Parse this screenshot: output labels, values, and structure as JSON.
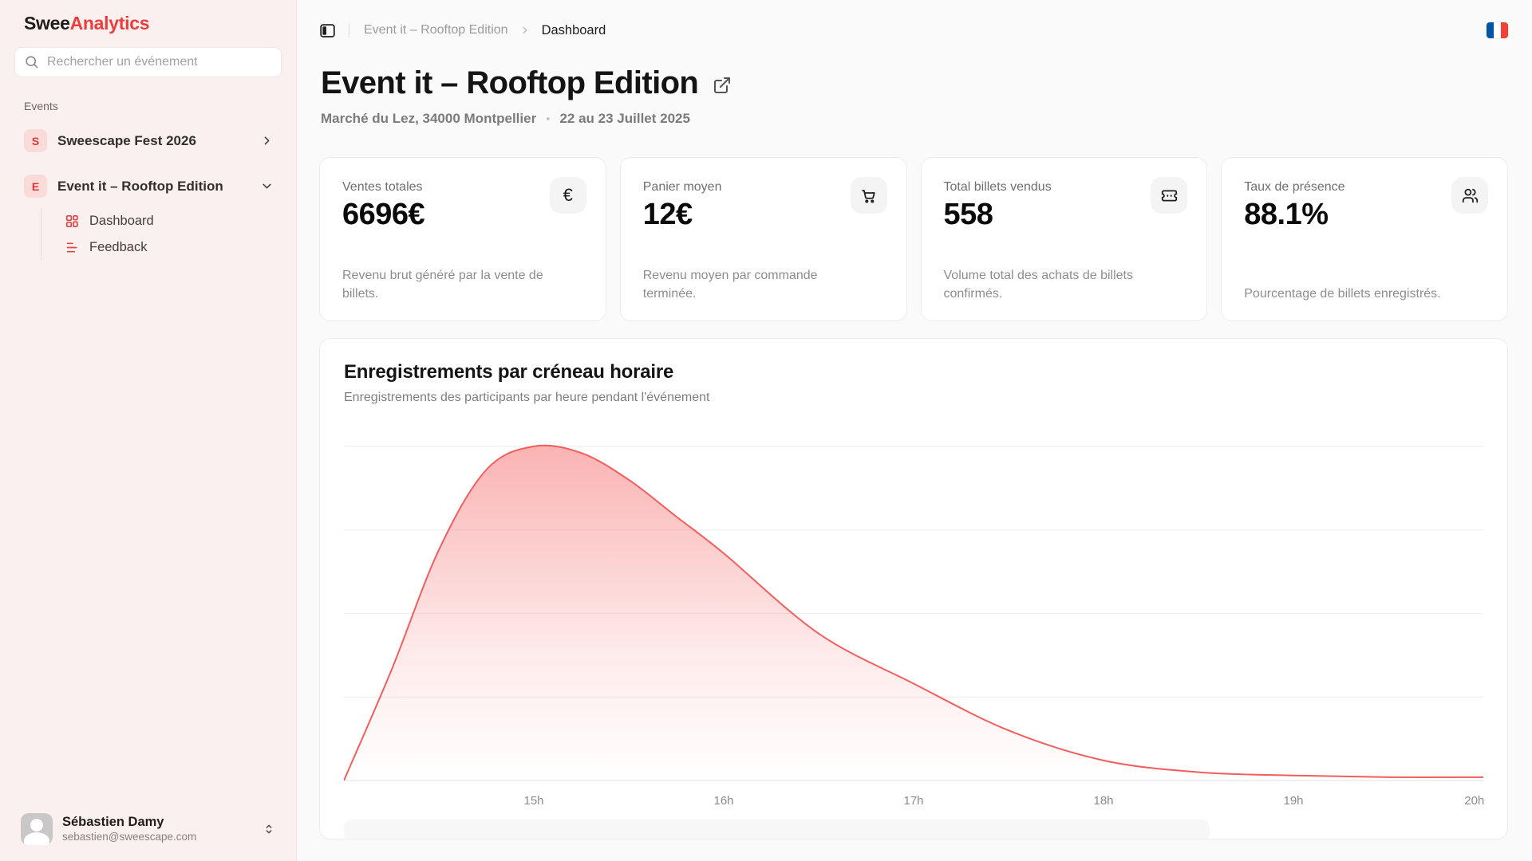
{
  "app": {
    "brand_prefix": "Swee",
    "brand_suffix": "Analytics"
  },
  "sidebar": {
    "search_placeholder": "Rechercher un événement",
    "section_label": "Events",
    "events": [
      {
        "initial": "S",
        "label": "Sweescape Fest 2026",
        "expanded": false
      },
      {
        "initial": "E",
        "label": "Event it – Rooftop Edition",
        "expanded": true
      }
    ],
    "subitems": [
      {
        "label": "Dashboard",
        "icon": "dashboard-grid-icon"
      },
      {
        "label": "Feedback",
        "icon": "feedback-lines-icon"
      }
    ],
    "user": {
      "name": "Sébastien Damy",
      "email": "sebastien@sweescape.com"
    }
  },
  "header": {
    "breadcrumb_parent": "Event it – Rooftop Edition",
    "breadcrumb_current": "Dashboard",
    "language_flag": "french-flag"
  },
  "page": {
    "title": "Event it – Rooftop Edition",
    "location": "Marché du Lez, 34000 Montpellier",
    "separator": "•",
    "dates": "22 au 23 Juillet 2025"
  },
  "stats": [
    {
      "label": "Ventes totales",
      "value": "6696€",
      "icon": "euro-icon",
      "description": "Revenu brut généré par la vente de billets."
    },
    {
      "label": "Panier moyen",
      "value": "12€",
      "icon": "cart-icon",
      "description": "Revenu moyen par commande terminée."
    },
    {
      "label": "Total billets vendus",
      "value": "558",
      "icon": "ticket-icon",
      "description": "Volume total des achats de billets confirmés."
    },
    {
      "label": "Taux de présence",
      "value": "88.1%",
      "icon": "users-icon",
      "description": "Pourcentage de billets enregistrés."
    }
  ],
  "chart": {
    "title": "Enregistrements par créneau horaire",
    "subtitle": "Enregistrements des participants par heure pendant l'événement"
  },
  "chart_data": {
    "type": "area",
    "title": "Enregistrements par créneau horaire",
    "xlabel": "",
    "ylabel": "",
    "x": [
      14,
      14.25,
      14.5,
      14.75,
      15,
      15.25,
      15.5,
      15.75,
      16,
      16.5,
      17,
      17.5,
      18,
      18.5,
      19,
      19.5,
      20
    ],
    "values": [
      0,
      33,
      69,
      93,
      100,
      98,
      90,
      79,
      68,
      44,
      29,
      15,
      6,
      2.5,
      1.5,
      1,
      1
    ],
    "x_ticks": [
      15,
      16,
      17,
      18,
      19,
      20
    ],
    "x_tick_labels": [
      "15h",
      "16h",
      "17h",
      "18h",
      "19h",
      "20h"
    ],
    "xlim": [
      14,
      20
    ],
    "ylim": [
      0,
      105
    ],
    "grid_values": [
      25,
      50,
      75,
      100
    ],
    "grid": true,
    "legend_position": "none",
    "line_color": "#f25e5e",
    "fill_top": "rgba(246,109,109,0.52)",
    "fill_mid": "rgba(246,109,109,0.14)",
    "fill_bottom": "rgba(246,109,109,0)"
  },
  "colors": {
    "accent_red": "#ee3b3b",
    "sidebar_bg": "#faf0f0",
    "badge_bg": "#fbdada",
    "main_bg": "#fafafa",
    "card_border": "#ececec",
    "flag_blue": "#0055A4",
    "flag_white": "#ffffff",
    "flag_red": "#EF4135"
  }
}
